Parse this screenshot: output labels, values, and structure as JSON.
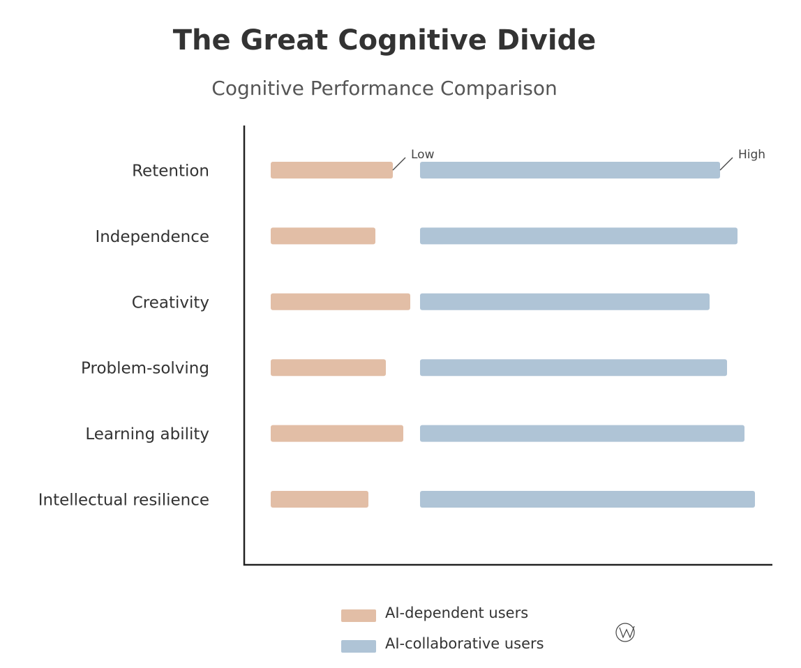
{
  "chart_data": {
    "type": "bar",
    "title": "The Great Cognitive Divide",
    "subtitle": "Cognitive Performance Comparison",
    "categories": [
      "Retention",
      "Independence",
      "Creativity",
      "Problem-solving",
      "Learning ability",
      "Intellectual resilience"
    ],
    "series": [
      {
        "name": "AI-dependent users",
        "color": "#e2bea6",
        "values": [
          35,
          30,
          40,
          33,
          38,
          28
        ]
      },
      {
        "name": "AI-collaborative users",
        "color": "#afc4d6",
        "values": [
          86,
          91,
          83,
          88,
          93,
          96
        ]
      }
    ],
    "annotations": [
      "Low",
      "High"
    ]
  }
}
